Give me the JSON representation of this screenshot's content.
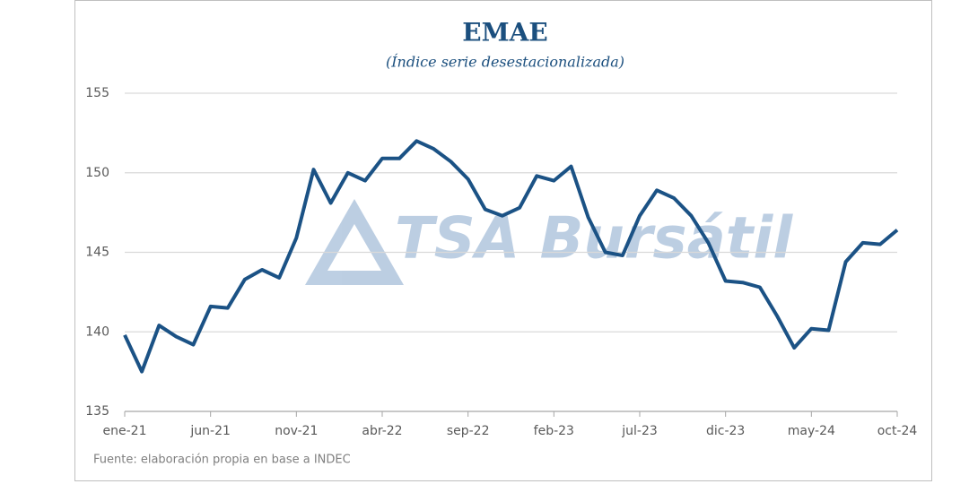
{
  "chart_data": {
    "type": "line",
    "title": "EMAE",
    "subtitle": "(Índice serie desestacionalizada)",
    "source": "Fuente: elaboración propia en base a INDEC",
    "watermark": "TSA Bursátil",
    "categories": [
      "ene-21",
      null,
      null,
      null,
      null,
      "jun-21",
      null,
      null,
      null,
      null,
      "nov-21",
      null,
      null,
      null,
      null,
      "abr-22",
      null,
      null,
      null,
      null,
      "sep-22",
      null,
      null,
      null,
      null,
      "feb-23",
      null,
      null,
      null,
      null,
      "jul-23",
      null,
      null,
      null,
      null,
      "dic-23",
      null,
      null,
      null,
      null,
      "may-24",
      null,
      null,
      null,
      null,
      "oct-24"
    ],
    "values": [
      139.8,
      137.5,
      140.4,
      139.7,
      139.2,
      141.6,
      141.5,
      143.3,
      143.9,
      143.4,
      145.9,
      150.2,
      148.1,
      150.0,
      149.5,
      150.9,
      150.9,
      152.0,
      151.5,
      150.7,
      149.6,
      147.7,
      147.3,
      147.8,
      149.8,
      149.5,
      150.4,
      147.2,
      145.0,
      144.8,
      147.3,
      148.9,
      148.4,
      147.3,
      145.6,
      143.2,
      143.1,
      142.8,
      141.0,
      139.0,
      140.2,
      140.1,
      144.4,
      145.6,
      145.5,
      146.4
    ],
    "color": "#1b5285",
    "ylim": [
      135,
      155
    ],
    "yticks": [
      135,
      140,
      145,
      150,
      155
    ],
    "grid": true
  }
}
